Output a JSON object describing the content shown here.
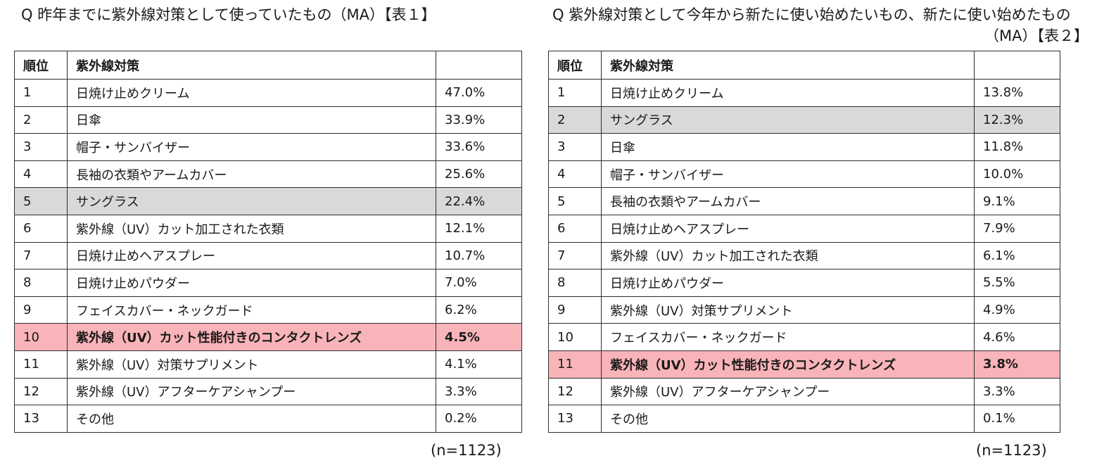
{
  "table1": {
    "title": "Q  昨年までに紫外線対策として使っていたもの（MA）【表１】",
    "headers": {
      "rank": "順位",
      "item": "紫外線対策",
      "pct": ""
    },
    "rows": [
      {
        "rank": "1",
        "item": "日焼け止めクリーム",
        "pct": "47.0%"
      },
      {
        "rank": "2",
        "item": "日傘",
        "pct": "33.9%"
      },
      {
        "rank": "3",
        "item": "帽子・サンバイザー",
        "pct": "33.6%"
      },
      {
        "rank": "4",
        "item": "長袖の衣類やアームカバー",
        "pct": "25.6%"
      },
      {
        "rank": "5",
        "item": "サングラス",
        "pct": "22.4%"
      },
      {
        "rank": "6",
        "item": "紫外線（UV）カット加工された衣類",
        "pct": "12.1%"
      },
      {
        "rank": "7",
        "item": "日焼け止めヘアスプレー",
        "pct": "10.7%"
      },
      {
        "rank": "8",
        "item": "日焼け止めパウダー",
        "pct": "7.0%"
      },
      {
        "rank": "9",
        "item": "フェイスカバー・ネックガード",
        "pct": "6.2%"
      },
      {
        "rank": "10",
        "item": "紫外線（UV）カット性能付きのコンタクトレンズ",
        "pct": "4.5%"
      },
      {
        "rank": "11",
        "item": "紫外線（UV）対策サプリメント",
        "pct": "4.1%"
      },
      {
        "rank": "12",
        "item": "紫外線（UV）アフターケアシャンプー",
        "pct": "3.3%"
      },
      {
        "rank": "13",
        "item": "その他",
        "pct": "0.2%"
      }
    ],
    "n": "(n=1123)"
  },
  "table2": {
    "title": "Q  紫外線対策として今年から新たに使い始めたいもの、新たに使い始めたもの",
    "title_line2": "（MA）【表２】",
    "headers": {
      "rank": "順位",
      "item": "紫外線対策",
      "pct": ""
    },
    "rows": [
      {
        "rank": "1",
        "item": "日焼け止めクリーム",
        "pct": "13.8%"
      },
      {
        "rank": "2",
        "item": "サングラス",
        "pct": "12.3%"
      },
      {
        "rank": "3",
        "item": "日傘",
        "pct": "11.8%"
      },
      {
        "rank": "4",
        "item": "帽子・サンバイザー",
        "pct": "10.0%"
      },
      {
        "rank": "5",
        "item": "長袖の衣類やアームカバー",
        "pct": "9.1%"
      },
      {
        "rank": "6",
        "item": "日焼け止めヘアスプレー",
        "pct": "7.9%"
      },
      {
        "rank": "7",
        "item": "紫外線（UV）カット加工された衣類",
        "pct": "6.1%"
      },
      {
        "rank": "8",
        "item": "日焼け止めパウダー",
        "pct": "5.5%"
      },
      {
        "rank": "9",
        "item": "紫外線（UV）対策サプリメント",
        "pct": "4.9%"
      },
      {
        "rank": "10",
        "item": "フェイスカバー・ネックガード",
        "pct": "4.6%"
      },
      {
        "rank": "11",
        "item": "紫外線（UV）カット性能付きのコンタクトレンズ",
        "pct": "3.8%"
      },
      {
        "rank": "12",
        "item": "紫外線（UV）アフターケアシャンプー",
        "pct": "3.3%"
      },
      {
        "rank": "13",
        "item": "その他",
        "pct": "0.1%"
      }
    ],
    "n": "(n=1123)"
  },
  "highlight_colors": {
    "gray": "#d9d9d9",
    "pink": "#f8b4b8"
  }
}
